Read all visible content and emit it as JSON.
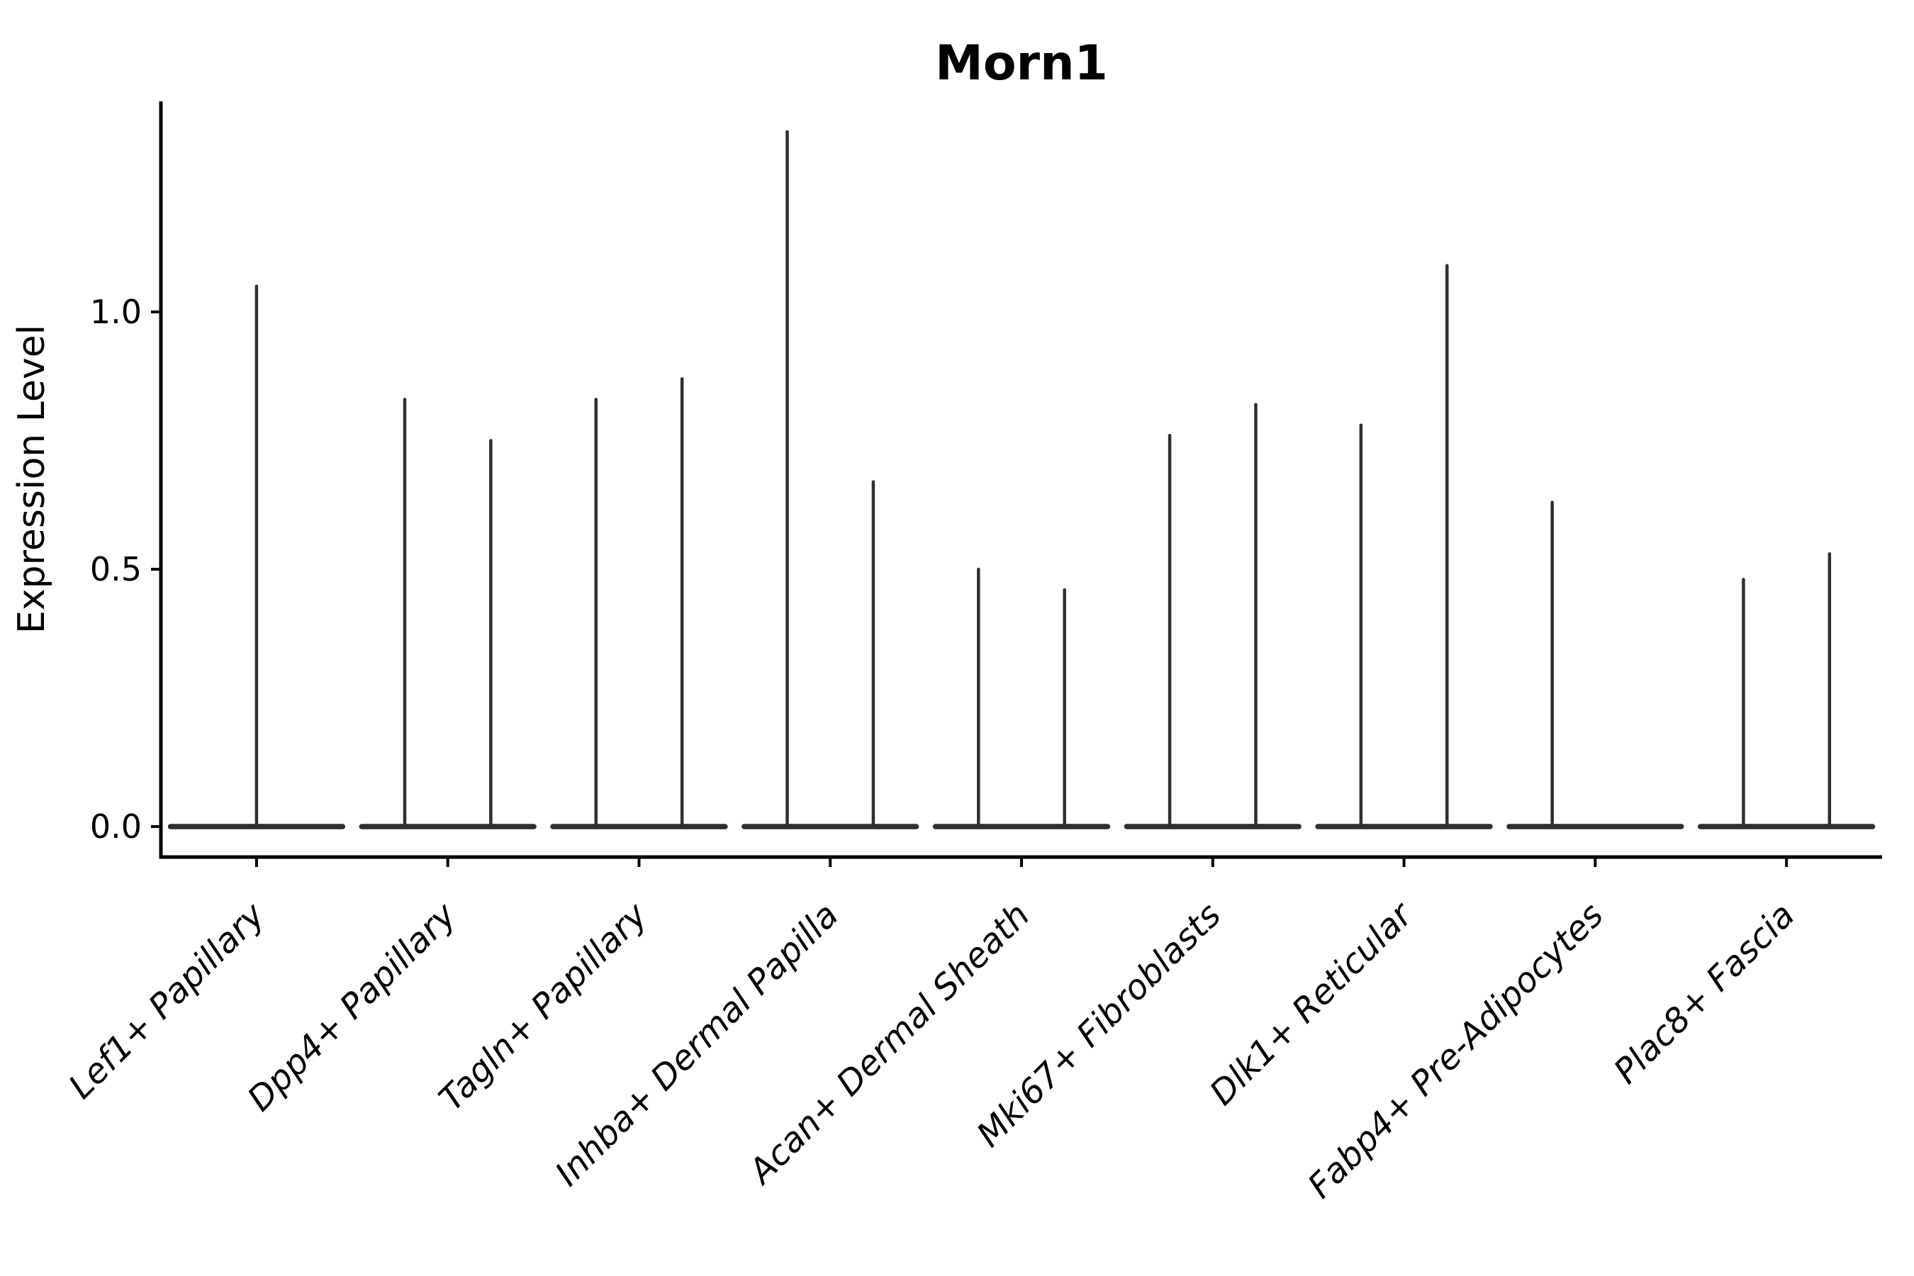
{
  "title": "Morn1",
  "ylabel": "Expression Level",
  "colors": {
    "axis": "#000000",
    "violin": "#2f2f2f",
    "background": "#ffffff",
    "text": "#000000"
  },
  "chart_data": {
    "type": "violin",
    "title": "Morn1",
    "xlabel": "",
    "ylabel": "Expression Level",
    "ylim": [
      0,
      1.41
    ],
    "yticks": [
      {
        "value": 0.0,
        "label": "0.0"
      },
      {
        "value": 0.5,
        "label": "0.5"
      },
      {
        "value": 1.0,
        "label": "1.0"
      }
    ],
    "grid": false,
    "legend": "none",
    "description": "Violin plot of Morn1 expression; expression is near zero for most cells so each violin collapses to a flat base at 0 with a thin spike up to its maximum. Most categories contain two side-by-side violins; Lef1+ Papillary shows a single centered violin and Fabp4+ Pre-Adipocytes shows only the left violin.",
    "categories": [
      "Lef1+ Papillary",
      "Dpp4+ Papillary",
      "Tagln+ Papillary",
      "Inhba+ Dermal Papilla",
      "Acan+ Dermal Sheath",
      "Mki67+ Fibroblasts",
      "Dlk1+ Reticular",
      "Fabp4+ Pre-Adipocytes",
      "Plac8+ Fascia"
    ],
    "violins": [
      {
        "category": "Lef1+ Papillary",
        "spikes": [
          {
            "position": "center",
            "max": 1.05
          }
        ]
      },
      {
        "category": "Dpp4+ Papillary",
        "spikes": [
          {
            "position": "left",
            "max": 0.83
          },
          {
            "position": "right",
            "max": 0.75
          }
        ]
      },
      {
        "category": "Tagln+ Papillary",
        "spikes": [
          {
            "position": "left",
            "max": 0.83
          },
          {
            "position": "right",
            "max": 0.87
          }
        ]
      },
      {
        "category": "Inhba+ Dermal Papilla",
        "spikes": [
          {
            "position": "left",
            "max": 1.35
          },
          {
            "position": "right",
            "max": 0.67
          }
        ]
      },
      {
        "category": "Acan+ Dermal Sheath",
        "spikes": [
          {
            "position": "left",
            "max": 0.5
          },
          {
            "position": "right",
            "max": 0.46
          }
        ]
      },
      {
        "category": "Mki67+ Fibroblasts",
        "spikes": [
          {
            "position": "left",
            "max": 0.76
          },
          {
            "position": "right",
            "max": 0.82
          }
        ]
      },
      {
        "category": "Dlk1+ Reticular",
        "spikes": [
          {
            "position": "left",
            "max": 0.78
          },
          {
            "position": "right",
            "max": 1.09
          }
        ]
      },
      {
        "category": "Fabp4+ Pre-Adipocytes",
        "spikes": [
          {
            "position": "left",
            "max": 0.63
          },
          {
            "position": "right",
            "max": 0
          }
        ]
      },
      {
        "category": "Plac8+ Fascia",
        "spikes": [
          {
            "position": "left",
            "max": 0.48
          },
          {
            "position": "right",
            "max": 0.53
          }
        ]
      }
    ]
  }
}
